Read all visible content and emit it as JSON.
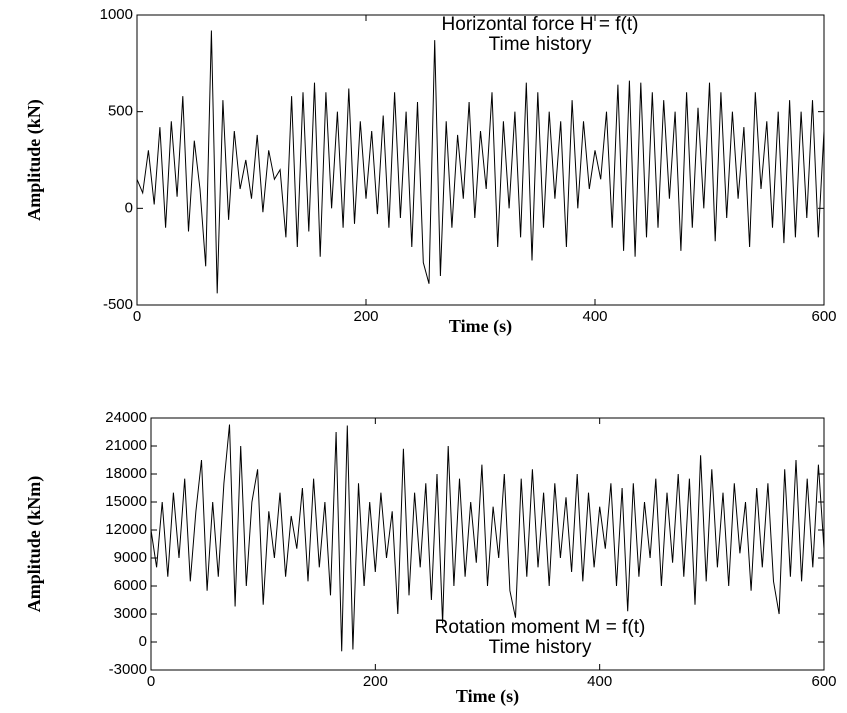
{
  "chart_data": [
    {
      "type": "line",
      "annotations": [
        "Horizontal force H = f(t)",
        "Time history"
      ],
      "xlabel": "Time (s)",
      "ylabel": "Amplitude (kN)",
      "color": "#000000",
      "x": [
        0,
        5,
        10,
        15,
        20,
        25,
        30,
        35,
        40,
        45,
        50,
        55,
        60,
        65,
        70,
        75,
        80,
        85,
        90,
        95,
        100,
        105,
        110,
        115,
        120,
        125,
        130,
        135,
        140,
        145,
        150,
        155,
        160,
        165,
        170,
        175,
        180,
        185,
        190,
        195,
        200,
        205,
        210,
        215,
        220,
        225,
        230,
        235,
        240,
        245,
        250,
        255,
        260,
        265,
        270,
        275,
        280,
        285,
        290,
        295,
        300,
        305,
        310,
        315,
        320,
        325,
        330,
        335,
        340,
        345,
        350,
        355,
        360,
        365,
        370,
        375,
        380,
        385,
        390,
        395,
        400,
        405,
        410,
        415,
        420,
        425,
        430,
        435,
        440,
        445,
        450,
        455,
        460,
        465,
        470,
        475,
        480,
        485,
        490,
        495,
        500,
        505,
        510,
        515,
        520,
        525,
        530,
        535,
        540,
        545,
        550,
        555,
        560,
        565,
        570,
        575,
        580,
        585,
        590,
        595,
        600
      ],
      "values": [
        150,
        80,
        300,
        20,
        420,
        -100,
        450,
        60,
        580,
        -120,
        350,
        100,
        -300,
        920,
        -440,
        560,
        -60,
        400,
        100,
        250,
        50,
        380,
        -20,
        300,
        150,
        200,
        -150,
        580,
        -200,
        600,
        -120,
        650,
        -250,
        600,
        0,
        500,
        -100,
        620,
        -80,
        450,
        50,
        400,
        -30,
        480,
        -100,
        600,
        -50,
        500,
        -200,
        550,
        -280,
        -390,
        870,
        -350,
        450,
        -100,
        380,
        50,
        550,
        -50,
        400,
        100,
        600,
        -200,
        450,
        0,
        500,
        -150,
        650,
        -270,
        600,
        -100,
        500,
        50,
        450,
        -200,
        560,
        0,
        450,
        100,
        300,
        150,
        500,
        -100,
        640,
        -220,
        660,
        -250,
        650,
        -150,
        600,
        -100,
        560,
        50,
        500,
        -220,
        600,
        -100,
        520,
        0,
        650,
        -170,
        600,
        -50,
        500,
        50,
        420,
        -200,
        600,
        100,
        450,
        -100,
        500,
        -180,
        560,
        -150,
        500,
        -50,
        560,
        -150,
        400
      ],
      "xlim": [
        0,
        600
      ],
      "xticks": [
        0,
        200,
        400,
        600
      ],
      "ylim": [
        -500,
        1000
      ],
      "yticks": [
        -500,
        0,
        500,
        1000
      ]
    },
    {
      "type": "line",
      "annotations": [
        "Rotation moment M = f(t)",
        "Time history"
      ],
      "xlabel": "Time (s)",
      "ylabel": "Amplitude (kNm)",
      "color": "#000000",
      "x": [
        0,
        5,
        10,
        15,
        20,
        25,
        30,
        35,
        40,
        45,
        50,
        55,
        60,
        65,
        70,
        75,
        80,
        85,
        90,
        95,
        100,
        105,
        110,
        115,
        120,
        125,
        130,
        135,
        140,
        145,
        150,
        155,
        160,
        165,
        170,
        175,
        180,
        185,
        190,
        195,
        200,
        205,
        210,
        215,
        220,
        225,
        230,
        235,
        240,
        245,
        250,
        255,
        260,
        265,
        270,
        275,
        280,
        285,
        290,
        295,
        300,
        305,
        310,
        315,
        320,
        325,
        330,
        335,
        340,
        345,
        350,
        355,
        360,
        365,
        370,
        375,
        380,
        385,
        390,
        395,
        400,
        405,
        410,
        415,
        420,
        425,
        430,
        435,
        440,
        445,
        450,
        455,
        460,
        465,
        470,
        475,
        480,
        485,
        490,
        495,
        500,
        505,
        510,
        515,
        520,
        525,
        530,
        535,
        540,
        545,
        550,
        555,
        560,
        565,
        570,
        575,
        580,
        585,
        590,
        595,
        600
      ],
      "values": [
        12000,
        8000,
        15000,
        7000,
        16000,
        9000,
        17500,
        6500,
        14000,
        19500,
        5500,
        15000,
        7000,
        17000,
        23300,
        3800,
        21000,
        6000,
        15000,
        18500,
        4000,
        14000,
        9000,
        16000,
        7000,
        13500,
        10000,
        16500,
        6500,
        17500,
        8000,
        15000,
        5000,
        22500,
        -1000,
        23200,
        -800,
        17000,
        6000,
        15000,
        7500,
        16000,
        9000,
        14000,
        3000,
        20700,
        5000,
        16000,
        8000,
        17000,
        4500,
        18000,
        2000,
        21000,
        6000,
        17500,
        7000,
        15000,
        8500,
        19000,
        6000,
        14500,
        9000,
        18000,
        5500,
        2600,
        17500,
        7000,
        18500,
        8000,
        16000,
        6000,
        17000,
        9000,
        15500,
        7500,
        18000,
        6500,
        16000,
        8000,
        14500,
        10000,
        17000,
        6000,
        16500,
        3300,
        17000,
        7000,
        15000,
        9000,
        17500,
        6000,
        16000,
        8500,
        18000,
        7000,
        17500,
        4000,
        20000,
        6500,
        18500,
        8000,
        16000,
        6000,
        17000,
        9500,
        15000,
        5500,
        16500,
        8000,
        17000,
        6500,
        3000,
        18500,
        7000,
        19500,
        6500,
        17500,
        8000,
        19000,
        10000
      ],
      "xlim": [
        0,
        600
      ],
      "xticks": [
        0,
        200,
        400,
        600
      ],
      "ylim": [
        -3000,
        24000
      ],
      "yticks": [
        -3000,
        0,
        3000,
        6000,
        9000,
        12000,
        15000,
        18000,
        21000,
        24000
      ]
    }
  ]
}
